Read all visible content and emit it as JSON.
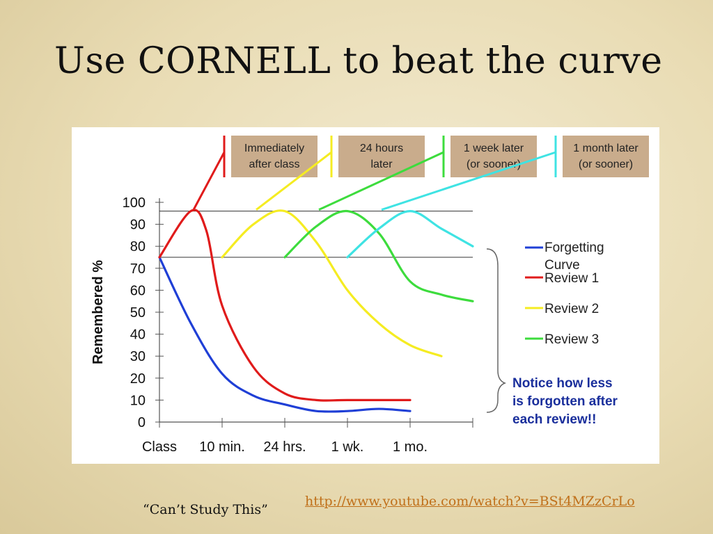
{
  "slide": {
    "title": "Use CORNELL to beat the curve",
    "caption": "“Can’t Study This”",
    "link": "http://www.youtube.com/watch?v=BSt4MZzCrLo"
  },
  "colors": {
    "forgetting": "#1f3fd6",
    "review1": "#e01b1b",
    "review2": "#f5ec22",
    "review3": "#3ddc3d",
    "review4": "#3fe3e3",
    "box_fill": "#c9ac8c",
    "note": "#1a2f9c"
  },
  "chart_data": {
    "type": "line",
    "ylabel": "Remembered %",
    "ylim": [
      0,
      100
    ],
    "y_ticks": [
      0,
      10,
      20,
      30,
      40,
      50,
      60,
      70,
      80,
      90,
      100
    ],
    "x_ticks": [
      "Class",
      "10 min.",
      "24 hrs.",
      "1 wk.",
      "1 mo."
    ],
    "reference_lines": [
      96,
      75
    ],
    "series": [
      {
        "name": "Forgetting Curve",
        "color_key": "forgetting",
        "points": [
          [
            0,
            75
          ],
          [
            0.5,
            45
          ],
          [
            1,
            22
          ],
          [
            1.5,
            12
          ],
          [
            2,
            8
          ],
          [
            2.5,
            5
          ],
          [
            3,
            5
          ],
          [
            3.5,
            6
          ],
          [
            4,
            5
          ]
        ]
      },
      {
        "name": "Review 1",
        "color_key": "review1",
        "points": [
          [
            0,
            75
          ],
          [
            0.5,
            96
          ],
          [
            0.75,
            87
          ],
          [
            1,
            53
          ],
          [
            1.5,
            25
          ],
          [
            2,
            13
          ],
          [
            2.5,
            10
          ],
          [
            3,
            10
          ],
          [
            4,
            10
          ]
        ]
      },
      {
        "name": "Review 2",
        "color_key": "review2",
        "points": [
          [
            1,
            75
          ],
          [
            1.5,
            90
          ],
          [
            2,
            96
          ],
          [
            2.5,
            82
          ],
          [
            3,
            60
          ],
          [
            3.5,
            45
          ],
          [
            4,
            35
          ],
          [
            4.5,
            30
          ]
        ]
      },
      {
        "name": "Review 3",
        "color_key": "review3",
        "points": [
          [
            2,
            75
          ],
          [
            2.5,
            89
          ],
          [
            3,
            96
          ],
          [
            3.5,
            86
          ],
          [
            4,
            64
          ],
          [
            4.5,
            58
          ],
          [
            5,
            55
          ]
        ]
      },
      {
        "name": "",
        "color_key": "review4",
        "points": [
          [
            3,
            75
          ],
          [
            3.5,
            88
          ],
          [
            4,
            96
          ],
          [
            4.5,
            88
          ],
          [
            5,
            80
          ]
        ]
      }
    ],
    "legend": [
      {
        "label": "Forgetting Curve",
        "color_key": "forgetting"
      },
      {
        "label": "Review 1",
        "color_key": "review1"
      },
      {
        "label": "Review 2",
        "color_key": "review2"
      },
      {
        "label": "Review 3",
        "color_key": "review3"
      }
    ],
    "timing_boxes": [
      {
        "lines": [
          "Immediately",
          "after class"
        ],
        "color_key": "review1"
      },
      {
        "lines": [
          "24 hours",
          "later"
        ],
        "color_key": "review2"
      },
      {
        "lines": [
          "1 week later",
          "(or sooner)"
        ],
        "color_key": "review3"
      },
      {
        "lines": [
          "1 month later",
          "(or sooner)"
        ],
        "color_key": "review4"
      }
    ],
    "annotation": [
      "Notice how less",
      "is forgotten after",
      "each review!!"
    ],
    "legend_position": "right"
  }
}
